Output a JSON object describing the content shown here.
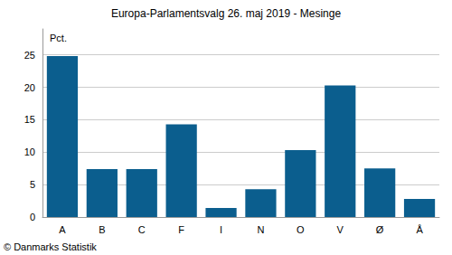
{
  "chart_data": {
    "type": "bar",
    "title": "Europa-Parlamentsvalg 26. maj 2019 - Mesinge",
    "ylabel": "Pct.",
    "annotation": "© Danmarks Statistik",
    "categories": [
      "A",
      "B",
      "C",
      "F",
      "I",
      "N",
      "O",
      "V",
      "Ø",
      "Å"
    ],
    "values": [
      24.8,
      7.4,
      7.4,
      14.3,
      1.4,
      4.3,
      10.3,
      20.3,
      7.5,
      2.8
    ],
    "color": "#0b5e8e",
    "ylim": [
      0,
      29
    ],
    "yticks": [
      0,
      5,
      10,
      15,
      20,
      25
    ],
    "grid": true
  }
}
